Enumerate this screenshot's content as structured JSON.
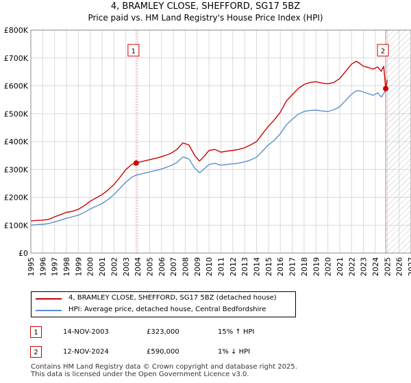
{
  "title": "4, BRAMLEY CLOSE, SHEFFORD, SG17 5BZ",
  "subtitle": "Price paid vs. HM Land Registry's House Price Index (HPI)",
  "chart_data": {
    "type": "line",
    "xlim": [
      1995,
      2027
    ],
    "ylim": [
      0,
      800000
    ],
    "y_ticks": [
      0,
      100000,
      200000,
      300000,
      400000,
      500000,
      600000,
      700000,
      800000
    ],
    "y_tick_labels": [
      "£0",
      "£100K",
      "£200K",
      "£300K",
      "£400K",
      "£500K",
      "£600K",
      "£700K",
      "£800K"
    ],
    "x_ticks": [
      1995,
      1996,
      1997,
      1998,
      1999,
      2000,
      2001,
      2002,
      2003,
      2004,
      2005,
      2006,
      2007,
      2008,
      2009,
      2010,
      2011,
      2012,
      2013,
      2014,
      2015,
      2016,
      2017,
      2018,
      2019,
      2020,
      2021,
      2022,
      2023,
      2024,
      2025,
      2026,
      2027
    ],
    "x_tick_labels": [
      "1995",
      "1996",
      "1997",
      "1998",
      "1999",
      "2000",
      "2001",
      "2002",
      "2003",
      "2004",
      "2005",
      "2006",
      "2007",
      "2008",
      "2009",
      "2010",
      "2011",
      "2012",
      "2013",
      "2014",
      "2015",
      "2016",
      "2017",
      "2018",
      "2019",
      "2020",
      "2021",
      "2022",
      "2023",
      "2024",
      "2025",
      "2026",
      "2027"
    ],
    "grid": true,
    "hatched_after": 2024.87,
    "series": [
      {
        "name": "4, BRAMLEY CLOSE, SHEFFORD, SG17 5BZ (detached house)",
        "color": "#cc0000",
        "x": [
          1995,
          1995.5,
          1996,
          1996.5,
          1997,
          1997.5,
          1998,
          1998.5,
          1999,
          1999.5,
          2000,
          2000.5,
          2001,
          2001.5,
          2002,
          2002.5,
          2003,
          2003.5,
          2003.87,
          2004.3,
          2004.8,
          2005.3,
          2005.8,
          2006.3,
          2006.8,
          2007.3,
          2007.8,
          2008.3,
          2008.8,
          2009.2,
          2009.6,
          2010,
          2010.5,
          2011,
          2011.5,
          2012,
          2012.5,
          2013,
          2013.5,
          2014,
          2014.5,
          2015,
          2015.5,
          2016,
          2016.5,
          2017,
          2017.5,
          2018,
          2018.5,
          2019,
          2019.5,
          2020,
          2020.5,
          2021,
          2021.5,
          2022,
          2022.4,
          2022.7,
          2023,
          2023.4,
          2023.8,
          2024.2,
          2024.5,
          2024.7,
          2024.87,
          2025.0
        ],
        "values": [
          115000,
          117000,
          118000,
          121000,
          130000,
          138000,
          146000,
          150000,
          157000,
          170000,
          186000,
          198000,
          210000,
          226000,
          246000,
          272000,
          300000,
          318000,
          323000,
          328000,
          333000,
          338000,
          343000,
          350000,
          358000,
          372000,
          395000,
          388000,
          350000,
          330000,
          348000,
          368000,
          372000,
          362000,
          366000,
          368000,
          372000,
          378000,
          388000,
          400000,
          428000,
          455000,
          478000,
          505000,
          545000,
          568000,
          590000,
          605000,
          612000,
          615000,
          610000,
          607000,
          612000,
          626000,
          652000,
          678000,
          688000,
          680000,
          670000,
          666000,
          660000,
          668000,
          652000,
          670000,
          590000,
          622000
        ]
      },
      {
        "name": "HPI: Average price, detached house, Central Bedfordshire",
        "color": "#5b8fd0",
        "x": [
          1995,
          1995.5,
          1996,
          1996.5,
          1997,
          1997.5,
          1998,
          1998.5,
          1999,
          1999.5,
          2000,
          2000.5,
          2001,
          2001.5,
          2002,
          2002.5,
          2003,
          2003.5,
          2003.87,
          2004.3,
          2004.8,
          2005.3,
          2005.8,
          2006.3,
          2006.8,
          2007.3,
          2007.8,
          2008.3,
          2008.8,
          2009.2,
          2009.6,
          2010,
          2010.5,
          2011,
          2011.5,
          2012,
          2012.5,
          2013,
          2013.5,
          2014,
          2014.5,
          2015,
          2015.5,
          2016,
          2016.5,
          2017,
          2017.5,
          2018,
          2018.5,
          2019,
          2019.5,
          2020,
          2020.5,
          2021,
          2021.5,
          2022,
          2022.4,
          2022.7,
          2023,
          2023.4,
          2023.8,
          2024.2,
          2024.5,
          2024.7,
          2024.87,
          2025.0
        ],
        "values": [
          100000,
          102000,
          103000,
          106000,
          112000,
          118000,
          125000,
          130000,
          136000,
          146000,
          158000,
          168000,
          178000,
          192000,
          210000,
          232000,
          255000,
          272000,
          280000,
          284000,
          289000,
          294000,
          299000,
          306000,
          314000,
          325000,
          345000,
          338000,
          305000,
          288000,
          302000,
          318000,
          322000,
          315000,
          318000,
          320000,
          323000,
          327000,
          334000,
          344000,
          366000,
          388000,
          405000,
          428000,
          460000,
          480000,
          498000,
          508000,
          512000,
          513000,
          510000,
          508000,
          514000,
          525000,
          548000,
          570000,
          582000,
          582000,
          578000,
          572000,
          566000,
          575000,
          560000,
          572000,
          583000,
          586000
        ]
      }
    ],
    "annotations": [
      {
        "label": "1",
        "x": 2003.87,
        "y": 323000
      },
      {
        "label": "2",
        "x": 2024.87,
        "y": 590000
      }
    ]
  },
  "legend": {
    "property_label": "4, BRAMLEY CLOSE, SHEFFORD, SG17 5BZ (detached house)",
    "hpi_label": "HPI: Average price, detached house, Central Bedfordshire"
  },
  "table": [
    {
      "num": "1",
      "date": "14-NOV-2003",
      "price": "£323,000",
      "hpi": "15% ↑ HPI"
    },
    {
      "num": "2",
      "date": "12-NOV-2024",
      "price": "£590,000",
      "hpi": "1% ↓ HPI"
    }
  ],
  "footer": {
    "line1": "Contains HM Land Registry data © Crown copyright and database right 2025.",
    "line2": "This data is licensed under the Open Government Licence v3.0."
  }
}
